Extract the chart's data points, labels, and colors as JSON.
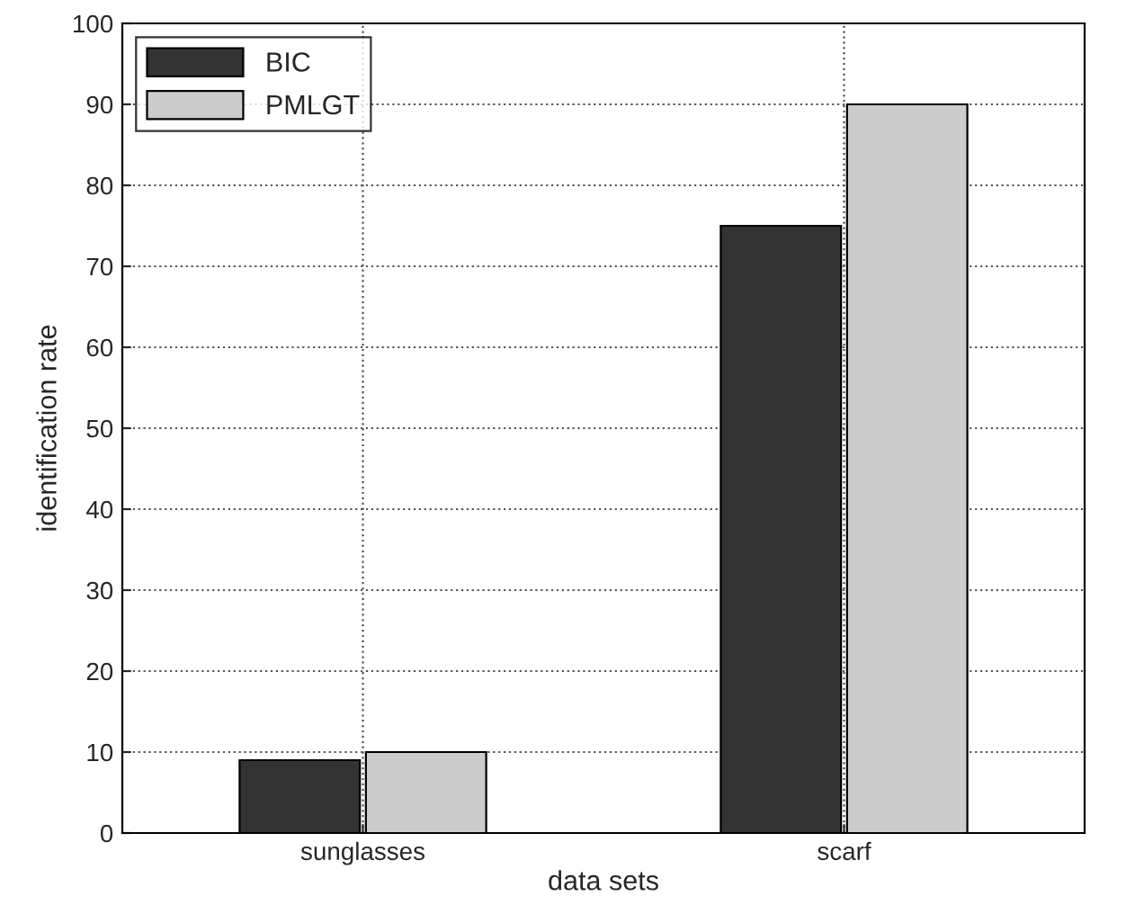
{
  "chart_data": {
    "type": "bar",
    "xlabel": "data sets",
    "ylabel": "identification rate",
    "categories": [
      "sunglasses",
      "scarf"
    ],
    "series": [
      {
        "name": "BIC",
        "color": "#333333",
        "values": [
          9,
          75
        ]
      },
      {
        "name": "PMLGT",
        "color": "#cccccc",
        "values": [
          10,
          90
        ]
      }
    ],
    "ylim": [
      0,
      100
    ],
    "yticks": [
      0,
      10,
      20,
      30,
      40,
      50,
      60,
      70,
      80,
      90,
      100
    ],
    "grid": true,
    "legend": "top left"
  }
}
